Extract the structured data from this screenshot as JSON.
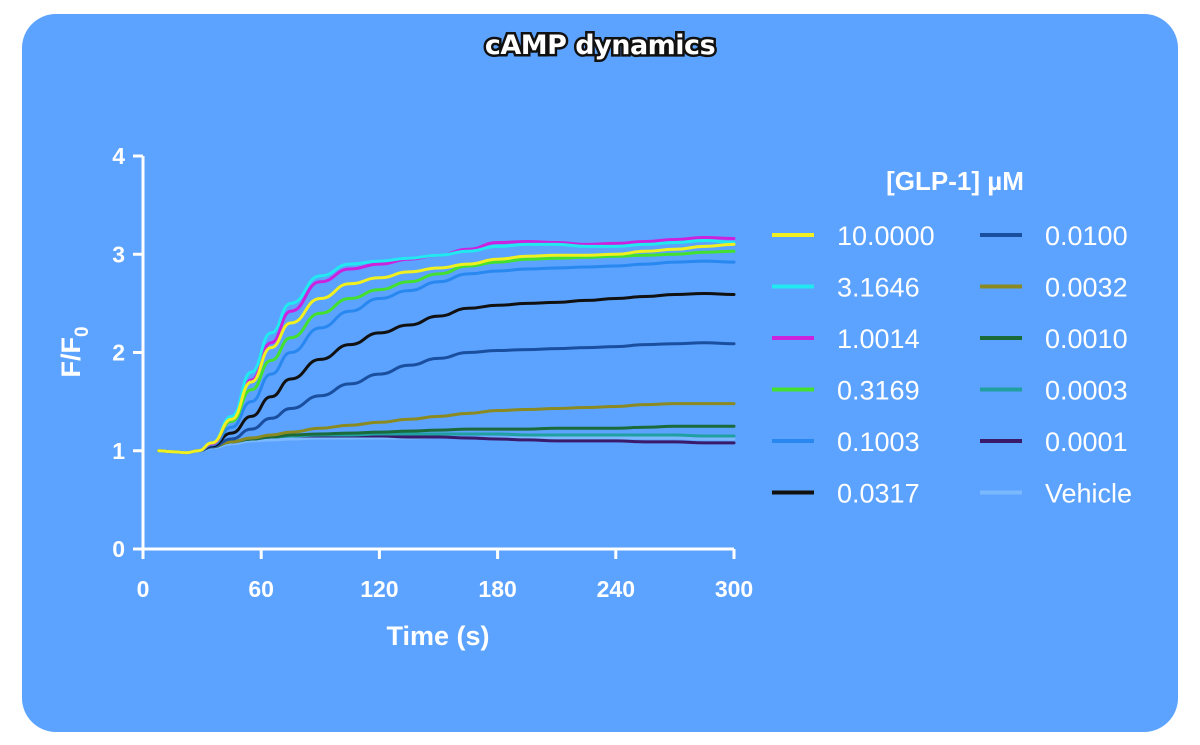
{
  "chart_data": {
    "type": "line",
    "title": "cAMP dynamics",
    "xlabel": "Time (s)",
    "ylabel_main": "F/F",
    "ylabel_sub": "0",
    "xlim": [
      0,
      300
    ],
    "ylim": [
      0,
      4
    ],
    "x_ticks": [
      "0",
      "60",
      "120",
      "180",
      "240",
      "300"
    ],
    "y_ticks": [
      "0",
      "1",
      "2",
      "3",
      "4"
    ],
    "grid": false,
    "legend_title": "[GLP-1] µM",
    "legend_position": "right",
    "x": [
      8,
      15,
      22,
      28,
      35,
      45,
      55,
      65,
      75,
      90,
      105,
      120,
      135,
      150,
      165,
      180,
      195,
      210,
      225,
      240,
      255,
      270,
      285,
      300
    ],
    "series": [
      {
        "name": "10.0000",
        "color": "#f0f020",
        "values": [
          1.0,
          0.99,
          0.98,
          1.0,
          1.08,
          1.32,
          1.7,
          2.05,
          2.3,
          2.55,
          2.7,
          2.76,
          2.82,
          2.86,
          2.9,
          2.95,
          2.98,
          2.99,
          2.99,
          3.0,
          3.03,
          3.05,
          3.08,
          3.1
        ]
      },
      {
        "name": "3.1646",
        "color": "#22e8f0",
        "values": [
          1.0,
          0.99,
          0.98,
          1.0,
          1.08,
          1.35,
          1.8,
          2.2,
          2.5,
          2.78,
          2.9,
          2.93,
          2.96,
          2.99,
          3.03,
          3.08,
          3.1,
          3.1,
          3.08,
          3.08,
          3.1,
          3.12,
          3.14,
          3.12
        ]
      },
      {
        "name": "1.0014",
        "color": "#cc22dd",
        "values": [
          1.0,
          0.99,
          0.98,
          1.0,
          1.07,
          1.32,
          1.72,
          2.1,
          2.42,
          2.72,
          2.85,
          2.9,
          2.95,
          2.99,
          3.05,
          3.12,
          3.13,
          3.12,
          3.1,
          3.11,
          3.13,
          3.15,
          3.17,
          3.16
        ]
      },
      {
        "name": "0.3169",
        "color": "#44e030",
        "values": [
          1.0,
          0.99,
          0.98,
          1.0,
          1.07,
          1.3,
          1.62,
          1.92,
          2.15,
          2.4,
          2.55,
          2.64,
          2.72,
          2.8,
          2.88,
          2.92,
          2.95,
          2.96,
          2.97,
          2.98,
          2.99,
          3.0,
          3.02,
          3.03
        ]
      },
      {
        "name": "0.1003",
        "color": "#2888f0",
        "values": [
          1.0,
          0.99,
          0.98,
          1.0,
          1.06,
          1.24,
          1.5,
          1.78,
          2.0,
          2.25,
          2.42,
          2.55,
          2.63,
          2.72,
          2.8,
          2.83,
          2.85,
          2.86,
          2.87,
          2.88,
          2.9,
          2.92,
          2.93,
          2.92
        ]
      },
      {
        "name": "0.0317",
        "color": "#111111",
        "values": [
          1.0,
          0.99,
          0.98,
          1.0,
          1.05,
          1.18,
          1.35,
          1.55,
          1.73,
          1.93,
          2.08,
          2.2,
          2.28,
          2.37,
          2.45,
          2.48,
          2.5,
          2.51,
          2.53,
          2.55,
          2.57,
          2.59,
          2.6,
          2.59
        ]
      },
      {
        "name": "0.0100",
        "color": "#1a4fa0",
        "values": [
          1.0,
          0.99,
          0.98,
          1.0,
          1.04,
          1.12,
          1.22,
          1.33,
          1.43,
          1.56,
          1.68,
          1.78,
          1.87,
          1.94,
          2.0,
          2.02,
          2.03,
          2.04,
          2.05,
          2.06,
          2.08,
          2.09,
          2.1,
          2.09
        ]
      },
      {
        "name": "0.0032",
        "color": "#8a8a20",
        "values": [
          1.0,
          0.99,
          0.98,
          1.0,
          1.04,
          1.09,
          1.13,
          1.16,
          1.19,
          1.23,
          1.26,
          1.29,
          1.32,
          1.35,
          1.38,
          1.41,
          1.42,
          1.43,
          1.44,
          1.45,
          1.47,
          1.48,
          1.48,
          1.48
        ]
      },
      {
        "name": "0.0010",
        "color": "#1a6a3a",
        "values": [
          1.0,
          0.99,
          0.98,
          1.0,
          1.04,
          1.09,
          1.12,
          1.14,
          1.16,
          1.17,
          1.18,
          1.19,
          1.2,
          1.21,
          1.22,
          1.22,
          1.22,
          1.23,
          1.23,
          1.23,
          1.24,
          1.25,
          1.25,
          1.25
        ]
      },
      {
        "name": "0.0003",
        "color": "#20a0a0",
        "values": [
          1.0,
          0.99,
          0.98,
          1.0,
          1.04,
          1.09,
          1.12,
          1.14,
          1.15,
          1.16,
          1.16,
          1.17,
          1.17,
          1.17,
          1.17,
          1.17,
          1.16,
          1.16,
          1.16,
          1.16,
          1.16,
          1.16,
          1.15,
          1.15
        ]
      },
      {
        "name": "0.0001",
        "color": "#3a1a6a",
        "values": [
          1.0,
          0.99,
          0.98,
          1.0,
          1.04,
          1.09,
          1.12,
          1.14,
          1.15,
          1.15,
          1.15,
          1.15,
          1.14,
          1.14,
          1.13,
          1.12,
          1.11,
          1.1,
          1.1,
          1.1,
          1.09,
          1.09,
          1.08,
          1.08
        ]
      },
      {
        "name": "Vehicle",
        "color": "#7ab8ff",
        "values": [
          1.0,
          0.99,
          0.98,
          1.0,
          1.03,
          1.07,
          1.1,
          1.11,
          1.12,
          1.13,
          1.13,
          1.13,
          1.13,
          1.14,
          1.13,
          1.13,
          1.13,
          1.13,
          1.13,
          1.13,
          1.13,
          1.13,
          1.12,
          1.12
        ]
      }
    ]
  }
}
